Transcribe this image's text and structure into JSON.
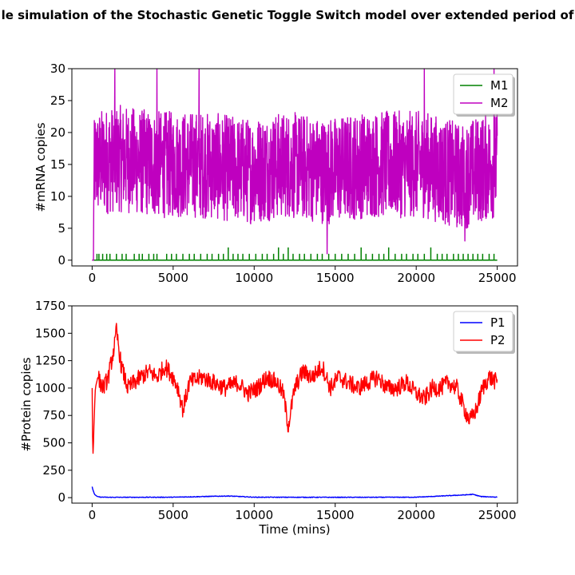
{
  "title": "le simulation of the Stochastic Genetic Toggle Switch model over extended period of",
  "chart_data": [
    {
      "type": "line",
      "xlabel": "",
      "ylabel": "#mRNA copies",
      "xlim": [
        -1250,
        26250
      ],
      "ylim": [
        -0.9,
        30
      ],
      "xticks": [
        0,
        5000,
        10000,
        15000,
        20000,
        25000
      ],
      "yticks": [
        0,
        5,
        10,
        15,
        20,
        25,
        30
      ],
      "legend": "top-right",
      "series": [
        {
          "name": "M1",
          "color": "#008000",
          "kind": "spikes",
          "x": [
            0,
            25000
          ],
          "values": [
            0,
            0
          ],
          "spikes": [
            [
              300,
              1
            ],
            [
              420,
              1
            ],
            [
              650,
              1
            ],
            [
              900,
              1
            ],
            [
              1100,
              1
            ],
            [
              1500,
              1
            ],
            [
              1850,
              1
            ],
            [
              2100,
              1
            ],
            [
              2600,
              1
            ],
            [
              2900,
              1
            ],
            [
              3100,
              1
            ],
            [
              3500,
              1
            ],
            [
              3800,
              1
            ],
            [
              4000,
              1
            ],
            [
              4600,
              1
            ],
            [
              4900,
              1
            ],
            [
              5200,
              1
            ],
            [
              5600,
              1
            ],
            [
              6000,
              1
            ],
            [
              6300,
              1
            ],
            [
              6700,
              1
            ],
            [
              7100,
              1
            ],
            [
              7400,
              1
            ],
            [
              7800,
              1
            ],
            [
              8100,
              1
            ],
            [
              8400,
              2
            ],
            [
              8700,
              1
            ],
            [
              9000,
              1
            ],
            [
              9300,
              1
            ],
            [
              9700,
              1
            ],
            [
              10100,
              1
            ],
            [
              10500,
              1
            ],
            [
              10800,
              1
            ],
            [
              11200,
              1
            ],
            [
              11500,
              2
            ],
            [
              11800,
              1
            ],
            [
              12100,
              2
            ],
            [
              12400,
              1
            ],
            [
              12800,
              1
            ],
            [
              13100,
              1
            ],
            [
              13500,
              1
            ],
            [
              13900,
              1
            ],
            [
              14200,
              1
            ],
            [
              14600,
              1
            ],
            [
              15000,
              1
            ],
            [
              15400,
              1
            ],
            [
              15800,
              1
            ],
            [
              16200,
              1
            ],
            [
              16600,
              2
            ],
            [
              16900,
              1
            ],
            [
              17300,
              1
            ],
            [
              17700,
              1
            ],
            [
              18000,
              1
            ],
            [
              18300,
              2
            ],
            [
              18700,
              1
            ],
            [
              19100,
              1
            ],
            [
              19400,
              1
            ],
            [
              19800,
              1
            ],
            [
              20100,
              1
            ],
            [
              20500,
              1
            ],
            [
              20900,
              2
            ],
            [
              21300,
              1
            ],
            [
              21600,
              1
            ],
            [
              21900,
              1
            ],
            [
              22300,
              1
            ],
            [
              22600,
              1
            ],
            [
              22900,
              1
            ],
            [
              23200,
              1
            ],
            [
              23500,
              1
            ],
            [
              23800,
              1
            ],
            [
              24100,
              1
            ],
            [
              24500,
              1
            ],
            [
              24800,
              1
            ]
          ]
        },
        {
          "name": "M2",
          "color": "#bf00bf",
          "kind": "noise",
          "x": [
            0,
            150,
            1500,
            4000,
            6600,
            9600,
            12000,
            14500,
            17000,
            20500,
            22800,
            23600,
            25000
          ],
          "values": [
            0,
            15,
            16,
            15,
            15,
            14,
            15,
            14,
            15,
            15,
            13,
            14,
            15
          ],
          "spread": 6,
          "peaks": [
            [
              80,
              0
            ],
            [
              100,
              9
            ],
            [
              1400,
              30
            ],
            [
              4000,
              30
            ],
            [
              6600,
              30
            ],
            [
              14500,
              1
            ],
            [
              20500,
              30
            ],
            [
              23000,
              3
            ],
            [
              24800,
              30
            ]
          ]
        }
      ]
    },
    {
      "type": "line",
      "xlabel": "Time (mins)",
      "ylabel": "#Protein copies",
      "xlim": [
        -1250,
        26250
      ],
      "ylim": [
        -50,
        1750
      ],
      "xticks": [
        0,
        5000,
        10000,
        15000,
        20000,
        25000
      ],
      "yticks": [
        0,
        250,
        500,
        750,
        1000,
        1250,
        1500,
        1750
      ],
      "legend": "top-right",
      "series": [
        {
          "name": "P1",
          "color": "#0000ff",
          "kind": "smooth",
          "x": [
            0,
            50,
            150,
            300,
            500,
            1000,
            5000,
            8400,
            10000,
            15000,
            20000,
            23000,
            23500,
            24000,
            25000
          ],
          "values": [
            100,
            70,
            30,
            12,
            5,
            3,
            4,
            15,
            4,
            3,
            4,
            25,
            30,
            10,
            5
          ],
          "spread": 3
        },
        {
          "name": "P2",
          "color": "#ff0000",
          "kind": "smooth",
          "x": [
            0,
            20,
            60,
            120,
            200,
            350,
            500,
            700,
            1000,
            1400,
            1500,
            1800,
            2200,
            2600,
            3000,
            3500,
            4000,
            4500,
            5000,
            5300,
            5600,
            6000,
            6800,
            7500,
            8200,
            9000,
            9600,
            10200,
            10800,
            11400,
            11800,
            12100,
            12500,
            13000,
            13600,
            14200,
            14700,
            15200,
            15800,
            16400,
            17000,
            17600,
            18200,
            18800,
            19400,
            20000,
            20500,
            21000,
            21500,
            22000,
            22500,
            23000,
            23300,
            23700,
            24100,
            24500,
            25000
          ],
          "values": [
            1000,
            600,
            380,
            700,
            1000,
            1100,
            1050,
            1000,
            1100,
            1400,
            1520,
            1200,
            1000,
            1050,
            1100,
            1150,
            1100,
            1200,
            1100,
            1000,
            800,
            1050,
            1100,
            1050,
            1000,
            1050,
            950,
            1000,
            1100,
            1050,
            950,
            650,
            1000,
            1150,
            1100,
            1200,
            1000,
            1100,
            1050,
            1000,
            1050,
            1100,
            1000,
            1000,
            1050,
            950,
            900,
            1000,
            1000,
            1050,
            1000,
            800,
            700,
            800,
            1000,
            1100,
            1050
          ],
          "spread": 80
        }
      ]
    }
  ]
}
